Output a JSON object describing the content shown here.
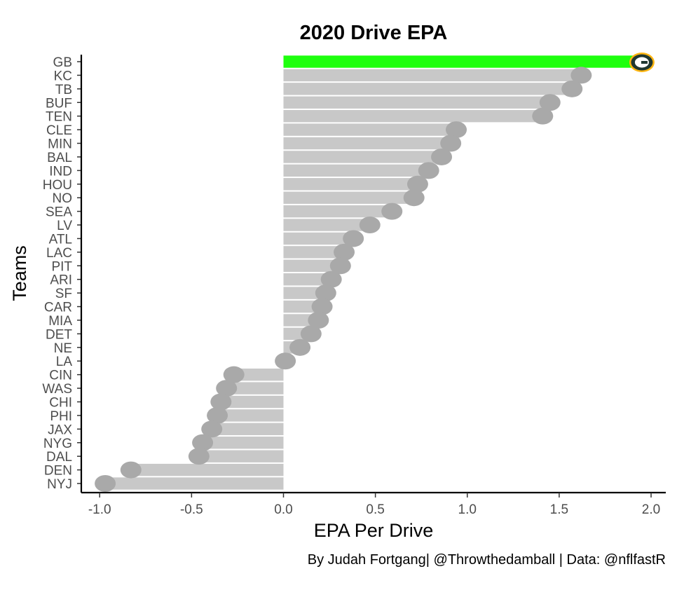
{
  "chart_data": {
    "type": "bar",
    "orientation": "horizontal",
    "title": "2020 Drive EPA",
    "xlabel": "EPA Per Drive",
    "ylabel": "Teams",
    "caption": "By Judah Fortgang| @Throwthedamball | Data: @nflfastR",
    "xlim": [
      -1.1,
      2.08
    ],
    "xticks": [
      -1.0,
      -0.5,
      0.0,
      0.5,
      1.0,
      1.5,
      2.0
    ],
    "xtick_labels": [
      "-1.0",
      "-0.5",
      "0.0",
      "0.5",
      "1.0",
      "1.5",
      "2.0"
    ],
    "grid": false,
    "highlight_color": "#1eff0e",
    "bar_color": "#c8c8c8",
    "logo_color": "#a9a9a9",
    "categories": [
      "GB",
      "KC",
      "TB",
      "BUF",
      "TEN",
      "CLE",
      "MIN",
      "BAL",
      "IND",
      "HOU",
      "NO",
      "SEA",
      "LV",
      "ATL",
      "LAC",
      "PIT",
      "ARI",
      "SF",
      "CAR",
      "MIA",
      "DET",
      "NE",
      "LA",
      "CIN",
      "WAS",
      "CHI",
      "PHI",
      "JAX",
      "NYG",
      "DAL",
      "DEN",
      "NYJ"
    ],
    "values": [
      1.95,
      1.62,
      1.57,
      1.45,
      1.41,
      0.94,
      0.91,
      0.86,
      0.79,
      0.73,
      0.71,
      0.59,
      0.47,
      0.38,
      0.33,
      0.31,
      0.26,
      0.23,
      0.21,
      0.19,
      0.15,
      0.09,
      0.01,
      -0.27,
      -0.31,
      -0.34,
      -0.36,
      -0.39,
      -0.44,
      -0.46,
      -0.83,
      -0.97
    ],
    "highlighted": [
      "GB"
    ]
  }
}
